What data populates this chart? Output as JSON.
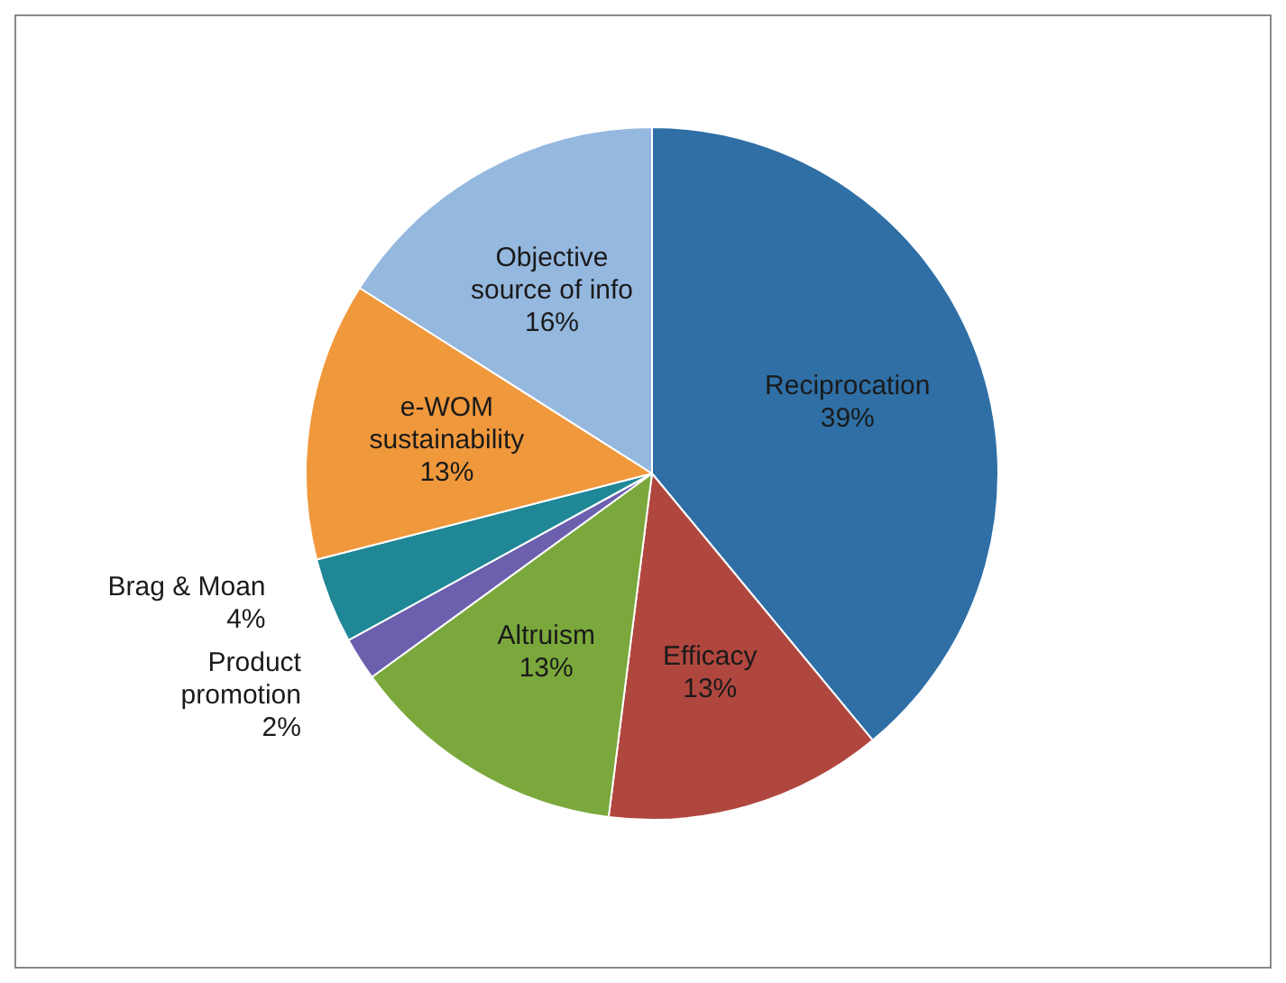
{
  "chart_data": {
    "type": "pie",
    "categories": [
      "Reciprocation",
      "Efficacy",
      "Altruism",
      "Product promotion",
      "Brag & Moan",
      "e-WOM sustainability",
      "Objective source of info"
    ],
    "values": [
      39,
      13,
      13,
      2,
      4,
      13,
      16
    ],
    "value_labels": [
      "39%",
      "13%",
      "13%",
      "2%",
      "4%",
      "13%",
      "16%"
    ],
    "colors": [
      "#2f6fa6",
      "#b0473e",
      "#7aa83c",
      "#6b5fae",
      "#1f8796",
      "#f0983c",
      "#95b8df"
    ],
    "legend": false
  }
}
